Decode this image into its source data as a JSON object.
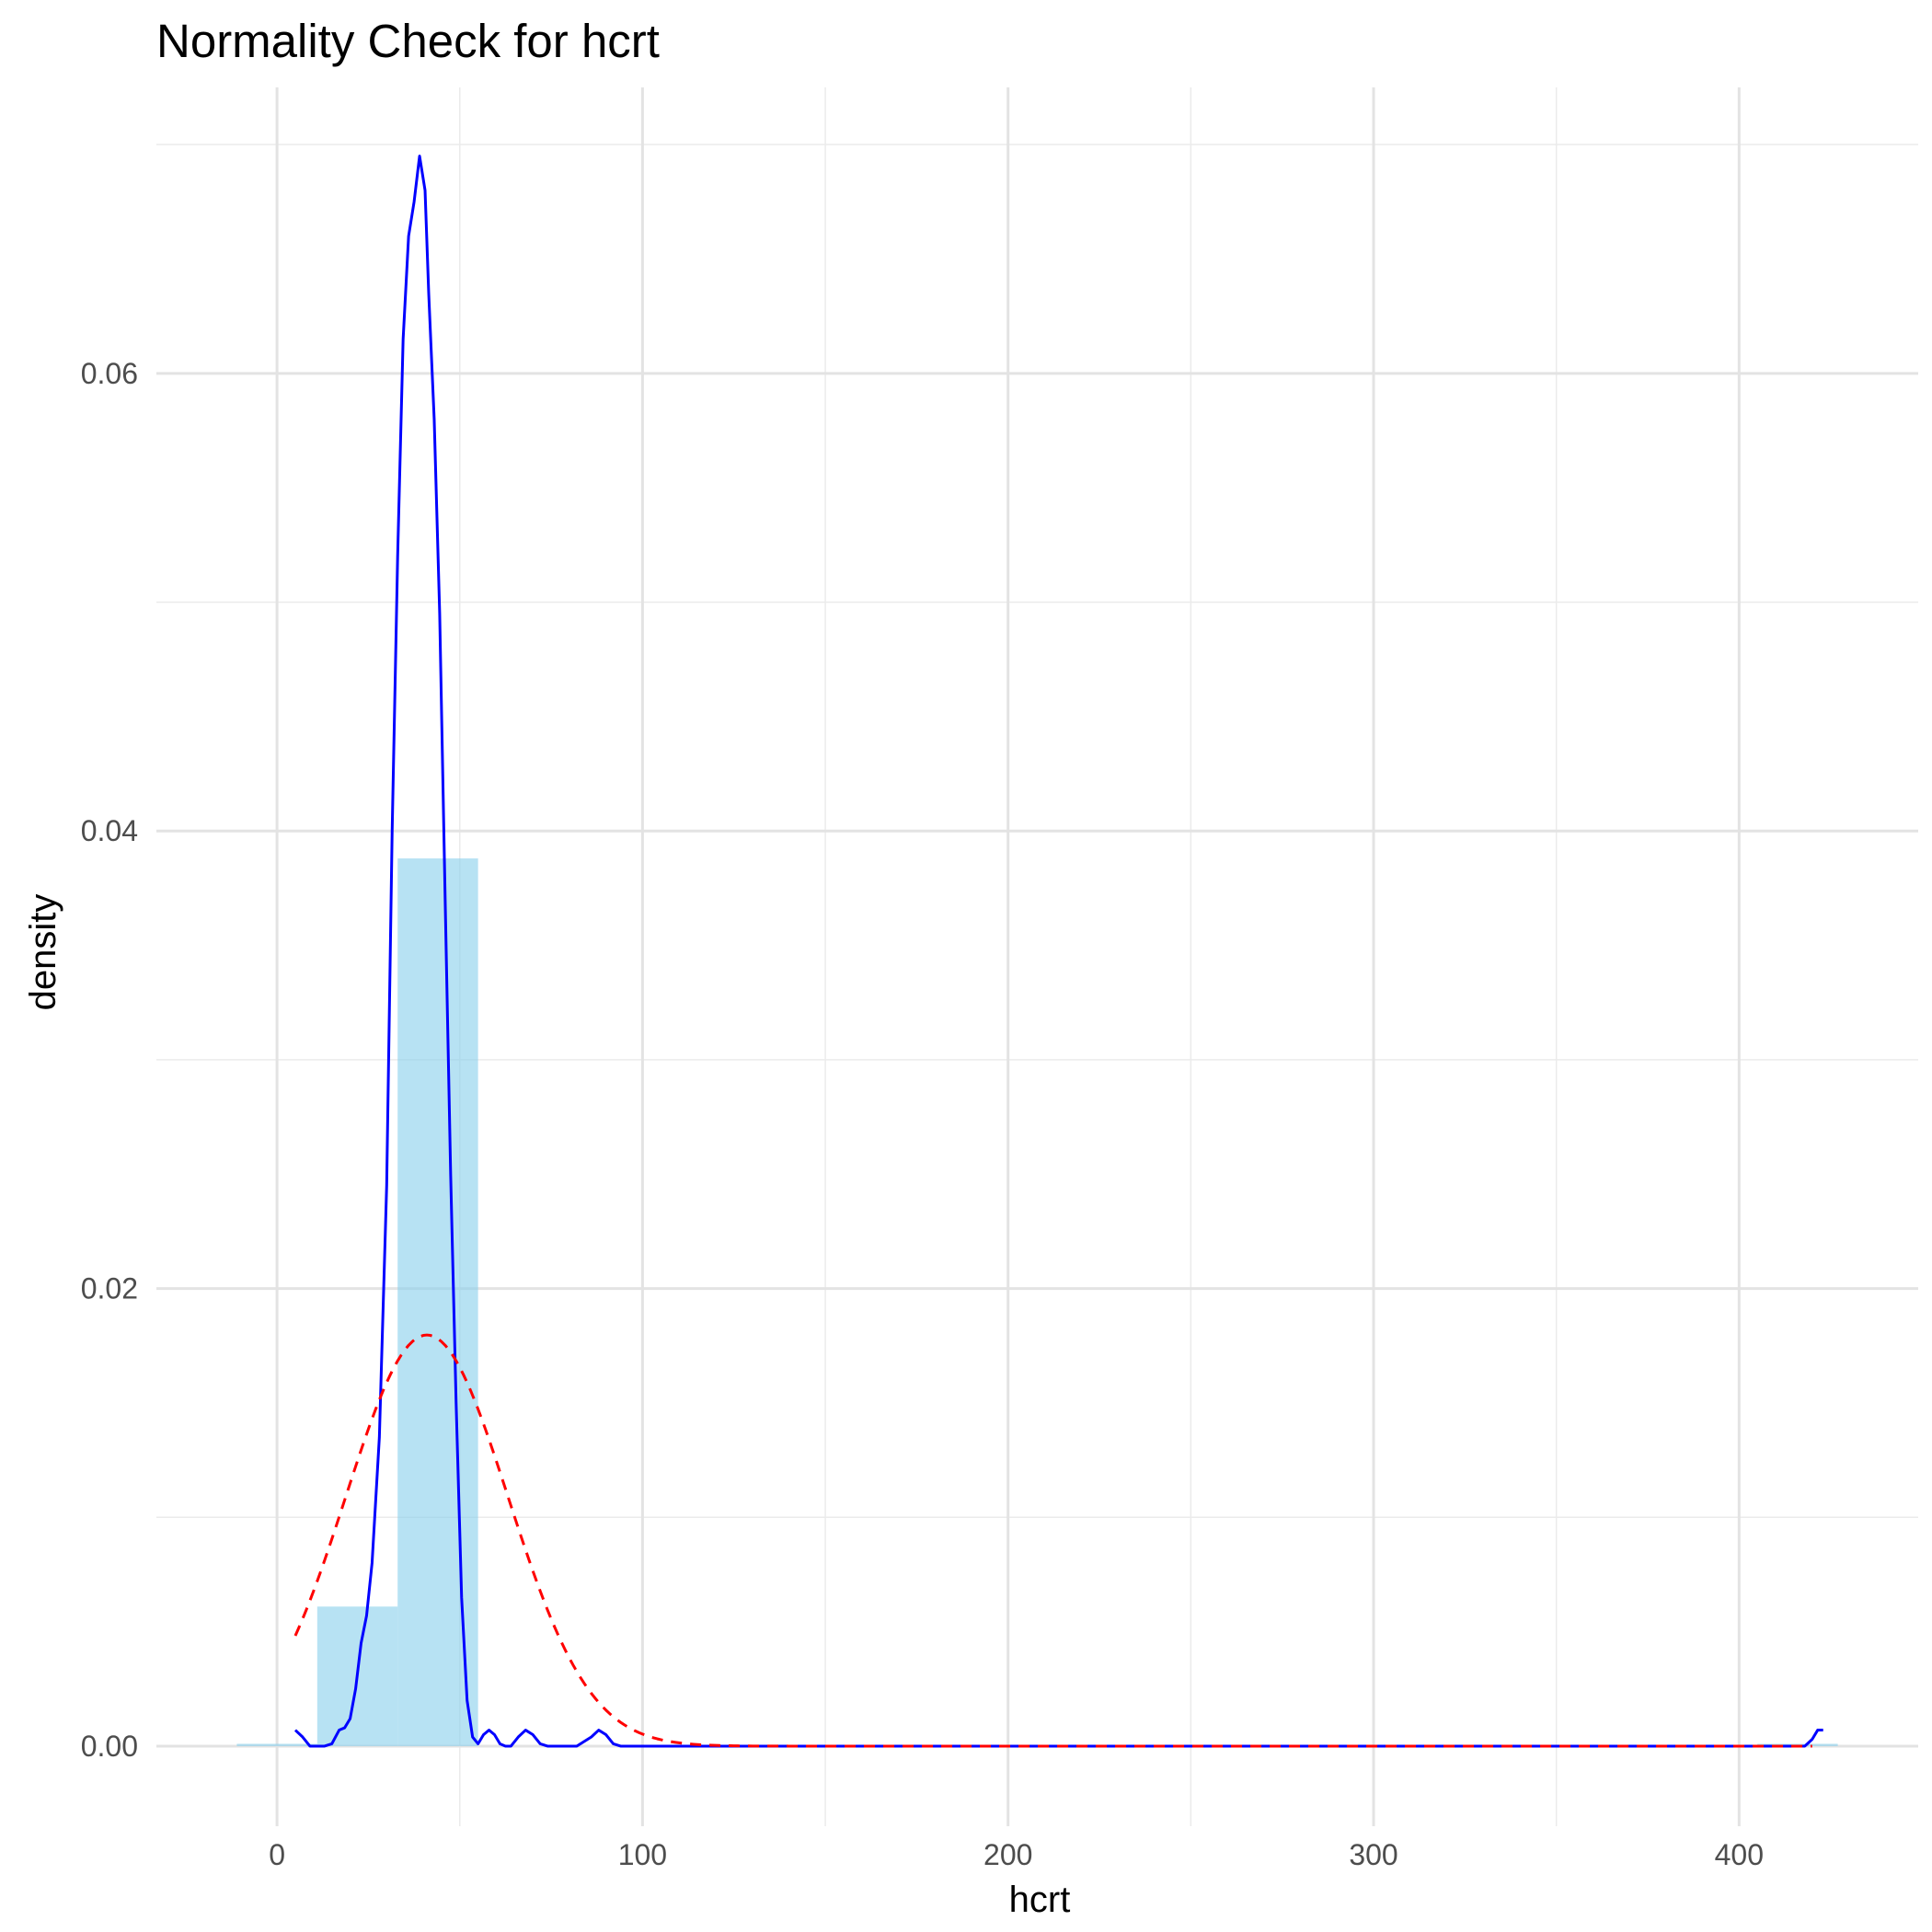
{
  "chart_data": {
    "type": "histogram",
    "title": "Normality Check for hcrt",
    "xlabel": "hcrt",
    "ylabel": "density",
    "xlim": [
      -33,
      449
    ],
    "ylim": [
      -0.0035,
      0.0725
    ],
    "x_ticks": [
      0,
      100,
      200,
      300,
      400
    ],
    "x_tick_labels": [
      "0",
      "100",
      "200",
      "300",
      "400"
    ],
    "y_ticks": [
      0,
      0.02,
      0.04,
      0.06
    ],
    "y_tick_labels": [
      "0.00",
      "0.02",
      "0.04",
      "0.06"
    ],
    "grid": true,
    "legend": "none",
    "histogram": {
      "fill": "#87CEEB",
      "opacity": 0.6,
      "bins": [
        {
          "x0": -11,
          "x1": 11,
          "density": 0.0001
        },
        {
          "x0": 11,
          "x1": 33,
          "density": 0.0061
        },
        {
          "x0": 33,
          "x1": 55,
          "density": 0.0388
        },
        {
          "x0": 55,
          "x1": 77,
          "density": 0.0
        },
        {
          "x0": 77,
          "x1": 99,
          "density": 0.0
        },
        {
          "x0": 405,
          "x1": 427,
          "density": 0.0001
        }
      ]
    },
    "series": [
      {
        "kind": "kernel-density",
        "color": "#0000FF",
        "dash": "solid",
        "x": [
          5,
          7,
          9,
          11,
          13,
          15,
          17,
          18.5,
          20,
          21.5,
          23,
          24.5,
          26,
          28,
          30,
          31.5,
          33,
          34.5,
          36,
          37.5,
          39,
          40.5,
          41.5,
          43,
          44.5,
          46,
          47.5,
          49,
          50.5,
          52,
          53.5,
          55,
          56.5,
          58,
          59.5,
          61,
          62.5,
          64,
          66,
          68,
          70,
          72,
          74,
          76,
          78,
          82,
          86,
          88,
          90,
          92,
          94,
          96,
          100,
          150,
          200,
          250,
          300,
          350,
          400,
          418,
          420,
          421.5,
          423
        ],
        "y": [
          0.0007,
          0.0004,
          0.0,
          0.0,
          0.0,
          0.0001,
          0.0007,
          0.0008,
          0.0012,
          0.0025,
          0.0045,
          0.0057,
          0.008,
          0.0135,
          0.0245,
          0.04,
          0.052,
          0.0615,
          0.066,
          0.0675,
          0.0695,
          0.068,
          0.0635,
          0.058,
          0.0495,
          0.037,
          0.025,
          0.015,
          0.0065,
          0.002,
          0.0004,
          0.0001,
          0.0005,
          0.0007,
          0.0005,
          0.0001,
          0.0,
          0.0,
          0.0004,
          0.0007,
          0.0005,
          0.0001,
          0.0,
          0.0,
          0.0,
          0.0,
          0.0004,
          0.0007,
          0.0005,
          0.0001,
          0.0,
          0.0,
          0.0,
          0.0,
          0.0,
          0.0,
          0.0,
          0.0,
          0.0,
          0.0,
          0.0003,
          0.0007,
          0.0007
        ]
      },
      {
        "kind": "normal-fit",
        "color": "#FF0000",
        "dash": "dashed",
        "mean": 41,
        "sd": 22.2,
        "x_range": [
          5,
          420
        ]
      }
    ]
  }
}
